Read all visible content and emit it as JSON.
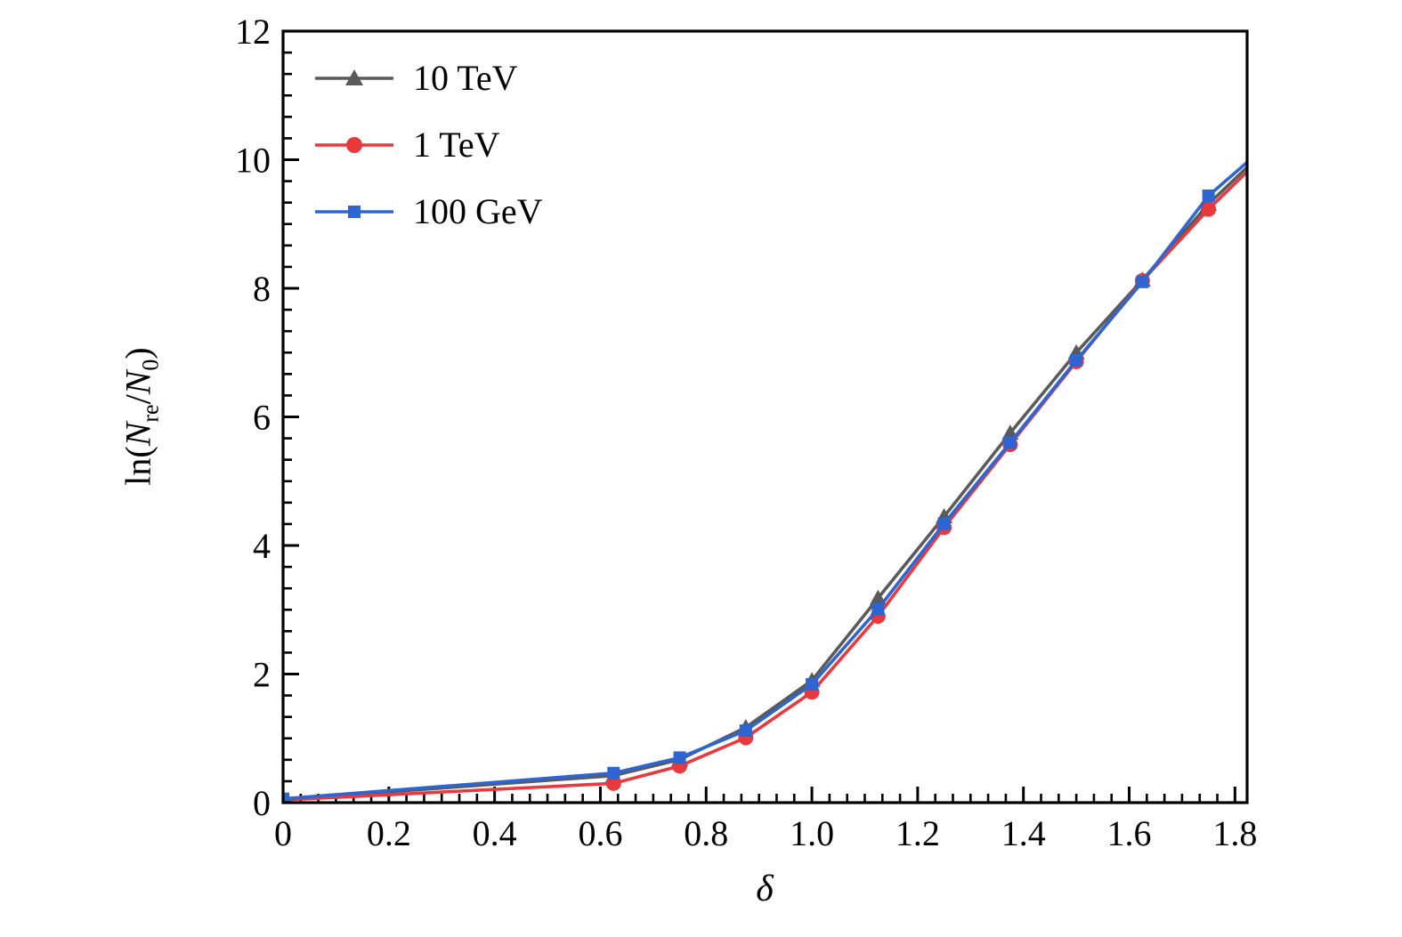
{
  "figure": {
    "background": "#ffffff",
    "axes_color": "#000000"
  },
  "chart_data": {
    "type": "line",
    "title": "",
    "xlabel": "δ",
    "ylabel": "ln(N_re/N_0)",
    "ylabel_parts": {
      "func": "ln(",
      "n1": "N",
      "n1_sub": "re",
      "divider": "/",
      "n2": "N",
      "n2_sub": "0",
      "close": ")"
    },
    "xlim": [
      0,
      1.823
    ],
    "ylim": [
      0,
      12
    ],
    "x_tick_values": [
      0,
      0.2,
      0.4,
      0.6,
      0.8,
      1.0,
      1.2,
      1.4,
      1.6,
      1.8
    ],
    "x_tick_labels": [
      "0",
      "0.2",
      "0.4",
      "0.6",
      "0.8",
      "1.0",
      "1.2",
      "1.4",
      "1.6",
      "1.8"
    ],
    "y_tick_values": [
      0,
      2,
      4,
      6,
      8,
      10,
      12
    ],
    "y_tick_labels": [
      "0",
      "2",
      "4",
      "6",
      "8",
      "10",
      "12"
    ],
    "x_minor_divisions": 6,
    "y_minor_divisions": 6,
    "grid": false,
    "legend_position": "upper-left",
    "x": [
      0,
      0.625,
      0.75,
      0.875,
      1.0,
      1.125,
      1.25,
      1.375,
      1.5,
      1.625,
      1.75,
      1.875
    ],
    "series": [
      {
        "name": "10 TeV",
        "color": "#5a5a5a",
        "marker": "triangle",
        "values": [
          0.05,
          0.42,
          0.67,
          1.17,
          1.9,
          3.18,
          4.45,
          5.75,
          7.0,
          8.13,
          9.31,
          10.29
        ]
      },
      {
        "name": "1 TeV",
        "color": "#e8393f",
        "marker": "circle",
        "values": [
          0.04,
          0.3,
          0.57,
          1.01,
          1.72,
          2.9,
          4.28,
          5.57,
          6.86,
          8.12,
          9.23,
          10.23
        ]
      },
      {
        "name": "100 GeV",
        "color": "#2d65d2",
        "marker": "square",
        "values": [
          0.06,
          0.46,
          0.7,
          1.12,
          1.84,
          3.01,
          4.34,
          5.6,
          6.88,
          8.1,
          9.44,
          10.33
        ]
      }
    ]
  }
}
